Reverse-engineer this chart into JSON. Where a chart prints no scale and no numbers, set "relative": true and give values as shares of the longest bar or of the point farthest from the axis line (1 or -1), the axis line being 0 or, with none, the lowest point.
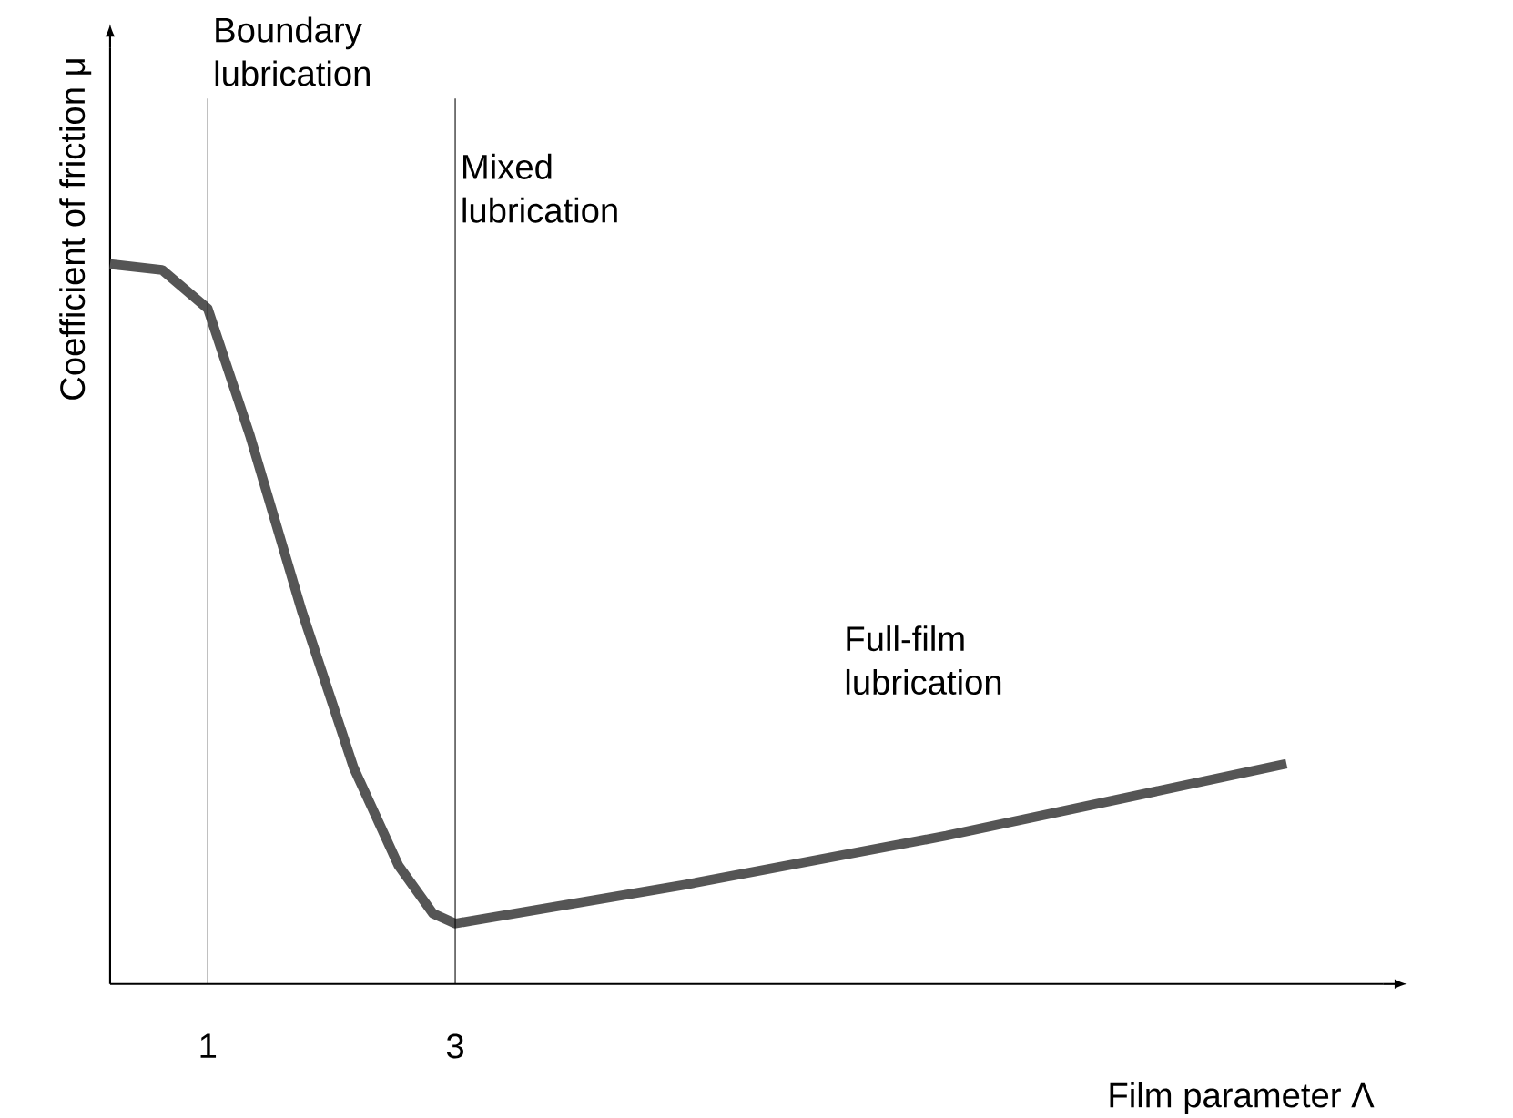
{
  "chart_data": {
    "type": "line",
    "relative": true,
    "xlabel": "Film parameter Λ",
    "ylabel": "Coefficient of friction μ",
    "xlim": [
      0.21,
      10.5
    ],
    "xticks": [
      1,
      3
    ],
    "color": "#555555",
    "marker": "none",
    "grid": false,
    "x": [
      0.21,
      0.63,
      1.0,
      1.34,
      1.76,
      2.18,
      2.54,
      2.82,
      3.0,
      4.86,
      6.97,
      9.72
    ],
    "values": [
      1.0,
      0.992,
      0.938,
      0.762,
      0.518,
      0.3,
      0.165,
      0.098,
      0.084,
      0.138,
      0.206,
      0.306
    ],
    "ref_lines": [
      {
        "axis": "x",
        "value": 1,
        "label": "Boundary lubrication",
        "color": "#000000"
      },
      {
        "axis": "x",
        "value": 3,
        "label": "Mixed lubrication",
        "color": "#000000"
      }
    ],
    "annotations": [
      "Full-film lubrication"
    ]
  }
}
